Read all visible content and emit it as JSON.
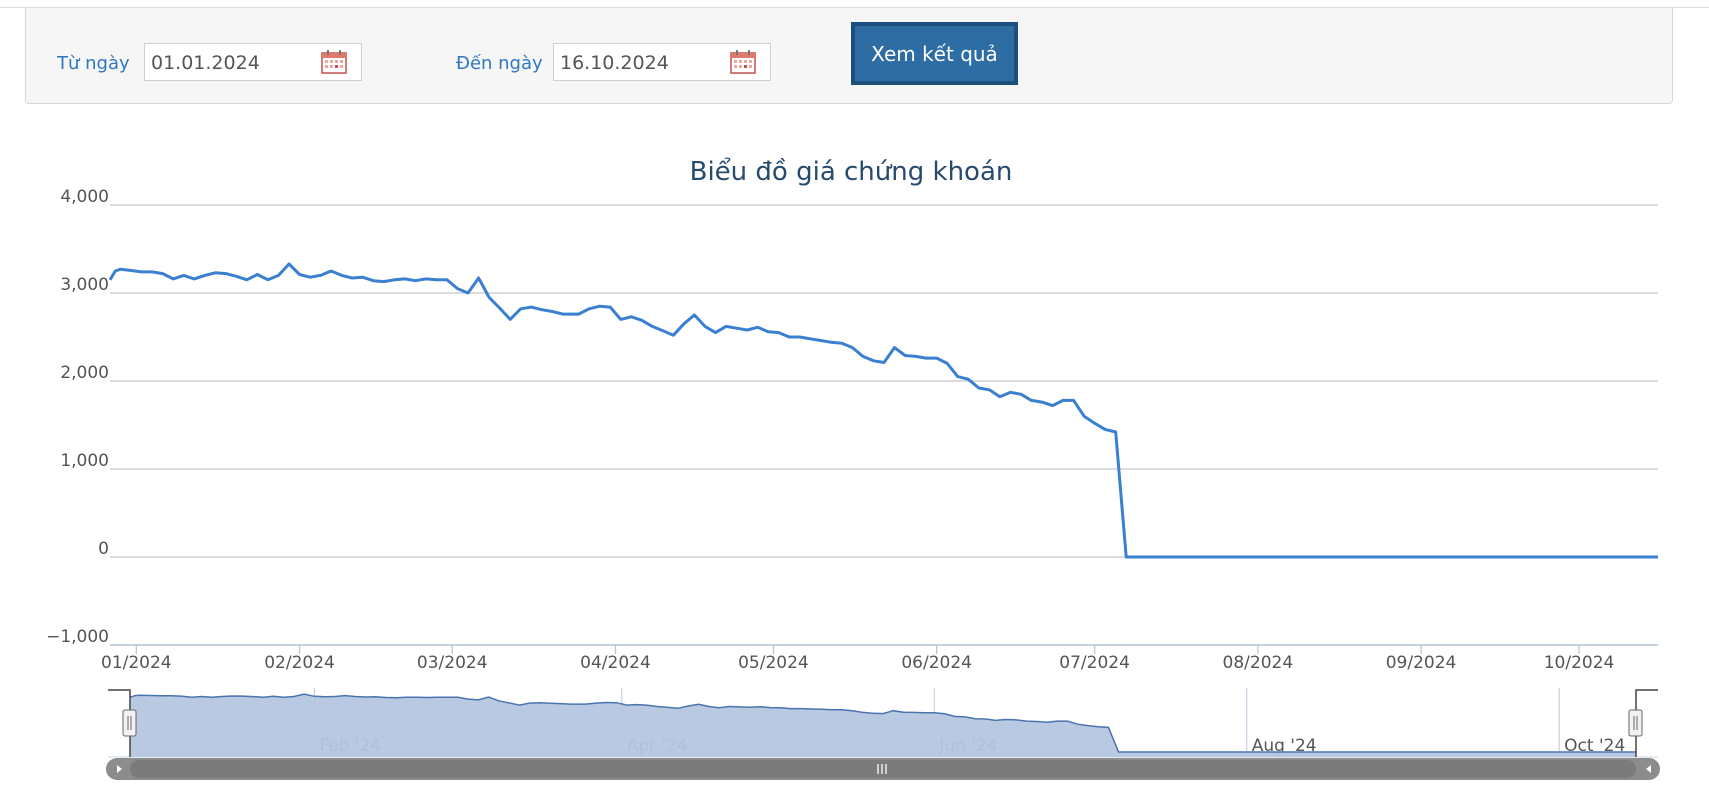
{
  "filter": {
    "from_label": "Từ ngày",
    "from_value": "01.01.2024",
    "to_label": "Đến ngày",
    "to_value": "16.10.2024",
    "submit_label": "Xem kết quả"
  },
  "chart_data": {
    "type": "line",
    "title": "Biểu đồ giá chứng khoán",
    "xlabel": "",
    "ylabel": "",
    "ylim": [
      -1000,
      4000
    ],
    "yticks": [
      -1000,
      0,
      1000,
      2000,
      3000,
      4000
    ],
    "ytick_labels": [
      "−1,000",
      "0",
      "1,000",
      "2,000",
      "3,000",
      "4,000"
    ],
    "xticks": [
      {
        "label": "01/2024",
        "date": "2024-01-01"
      },
      {
        "label": "02/2024",
        "date": "2024-02-01"
      },
      {
        "label": "03/2024",
        "date": "2024-03-01"
      },
      {
        "label": "04/2024",
        "date": "2024-04-01"
      },
      {
        "label": "05/2024",
        "date": "2024-05-01"
      },
      {
        "label": "06/2024",
        "date": "2024-06-01"
      },
      {
        "label": "07/2024",
        "date": "2024-07-01"
      },
      {
        "label": "08/2024",
        "date": "2024-08-01"
      },
      {
        "label": "09/2024",
        "date": "2024-09-01"
      },
      {
        "label": "10/2024",
        "date": "2024-10-01"
      }
    ],
    "grid": true,
    "line_color": "#3a7fd0",
    "series": [
      {
        "x": [
          "2023-12-27",
          "2023-12-28",
          "2023-12-29",
          "2024-01-02",
          "2024-01-04",
          "2024-01-06",
          "2024-01-08",
          "2024-01-10",
          "2024-01-12",
          "2024-01-14",
          "2024-01-16",
          "2024-01-18",
          "2024-01-20",
          "2024-01-22",
          "2024-01-24",
          "2024-01-26",
          "2024-01-28",
          "2024-01-30",
          "2024-02-01",
          "2024-02-03",
          "2024-02-05",
          "2024-02-07",
          "2024-02-09",
          "2024-02-11",
          "2024-02-13",
          "2024-02-15",
          "2024-02-17",
          "2024-02-19",
          "2024-02-21",
          "2024-02-23",
          "2024-02-25",
          "2024-02-27",
          "2024-02-29",
          "2024-03-02",
          "2024-03-04",
          "2024-03-06",
          "2024-03-08",
          "2024-03-10",
          "2024-03-12",
          "2024-03-14",
          "2024-03-16",
          "2024-03-18",
          "2024-03-20",
          "2024-03-22",
          "2024-03-23",
          "2024-03-25",
          "2024-03-27",
          "2024-03-29",
          "2024-03-31",
          "2024-04-02",
          "2024-04-04",
          "2024-04-06",
          "2024-04-08",
          "2024-04-10",
          "2024-04-12",
          "2024-04-14",
          "2024-04-16",
          "2024-04-18",
          "2024-04-20",
          "2024-04-22",
          "2024-04-24",
          "2024-04-26",
          "2024-04-28",
          "2024-04-30",
          "2024-05-02",
          "2024-05-04",
          "2024-05-06",
          "2024-05-08",
          "2024-05-10",
          "2024-05-12",
          "2024-05-14",
          "2024-05-16",
          "2024-05-18",
          "2024-05-20",
          "2024-05-22",
          "2024-05-24",
          "2024-05-26",
          "2024-05-28",
          "2024-05-30",
          "2024-06-01",
          "2024-06-03",
          "2024-06-05",
          "2024-06-07",
          "2024-06-09",
          "2024-06-11",
          "2024-06-13",
          "2024-06-15",
          "2024-06-17",
          "2024-06-19",
          "2024-06-21",
          "2024-06-23",
          "2024-06-25",
          "2024-06-27",
          "2024-06-29",
          "2024-07-01",
          "2024-07-03",
          "2024-07-05",
          "2024-07-07",
          "2024-07-09",
          "2024-07-11",
          "2024-07-13",
          "2024-07-15",
          "2024-07-17",
          "2024-07-19",
          "2024-07-21",
          "2024-07-23",
          "2024-07-25",
          "2024-07-26",
          "2024-07-27",
          "2024-07-28",
          "2024-08-04",
          "2024-08-15",
          "2024-09-01",
          "2024-09-15",
          "2024-10-01",
          "2024-10-16"
        ],
        "values": [
          3150,
          3250,
          3270,
          3240,
          3240,
          3220,
          3160,
          3200,
          3160,
          3200,
          3230,
          3220,
          3190,
          3150,
          3210,
          3150,
          3200,
          3330,
          3210,
          3180,
          3200,
          3250,
          3200,
          3170,
          3180,
          3140,
          3130,
          3150,
          3160,
          3140,
          3160,
          3150,
          3150,
          3050,
          3000,
          3170,
          2950,
          2830,
          2700,
          2820,
          2840,
          2810,
          2790,
          2760,
          2760,
          2760,
          2820,
          2850,
          2840,
          2700,
          2730,
          2690,
          2620,
          2570,
          2520,
          2650,
          2750,
          2620,
          2550,
          2620,
          2600,
          2580,
          2610,
          2560,
          2550,
          2500,
          2500,
          2480,
          2460,
          2440,
          2430,
          2380,
          2280,
          2230,
          2210,
          2380,
          2290,
          2280,
          2260,
          2260,
          2200,
          2050,
          2020,
          1920,
          1900,
          1820,
          1870,
          1850,
          1780,
          1760,
          1720,
          1780,
          1780,
          1600,
          1520,
          1450,
          1420,
          0,
          0,
          0,
          0,
          0,
          0,
          0,
          0,
          0,
          0,
          0,
          0,
          0,
          0,
          0,
          0,
          0,
          0,
          0
        ]
      }
    ],
    "navigator": {
      "labels": [
        "Feb '24",
        "Apr '24",
        "Jun '24",
        "Aug '24",
        "Oct '24"
      ],
      "label_dates": [
        "2024-02-01",
        "2024-04-01",
        "2024-06-01",
        "2024-08-01",
        "2024-10-01"
      ],
      "fill_color": "#b4c6df",
      "line_color": "#4a74b0"
    }
  }
}
